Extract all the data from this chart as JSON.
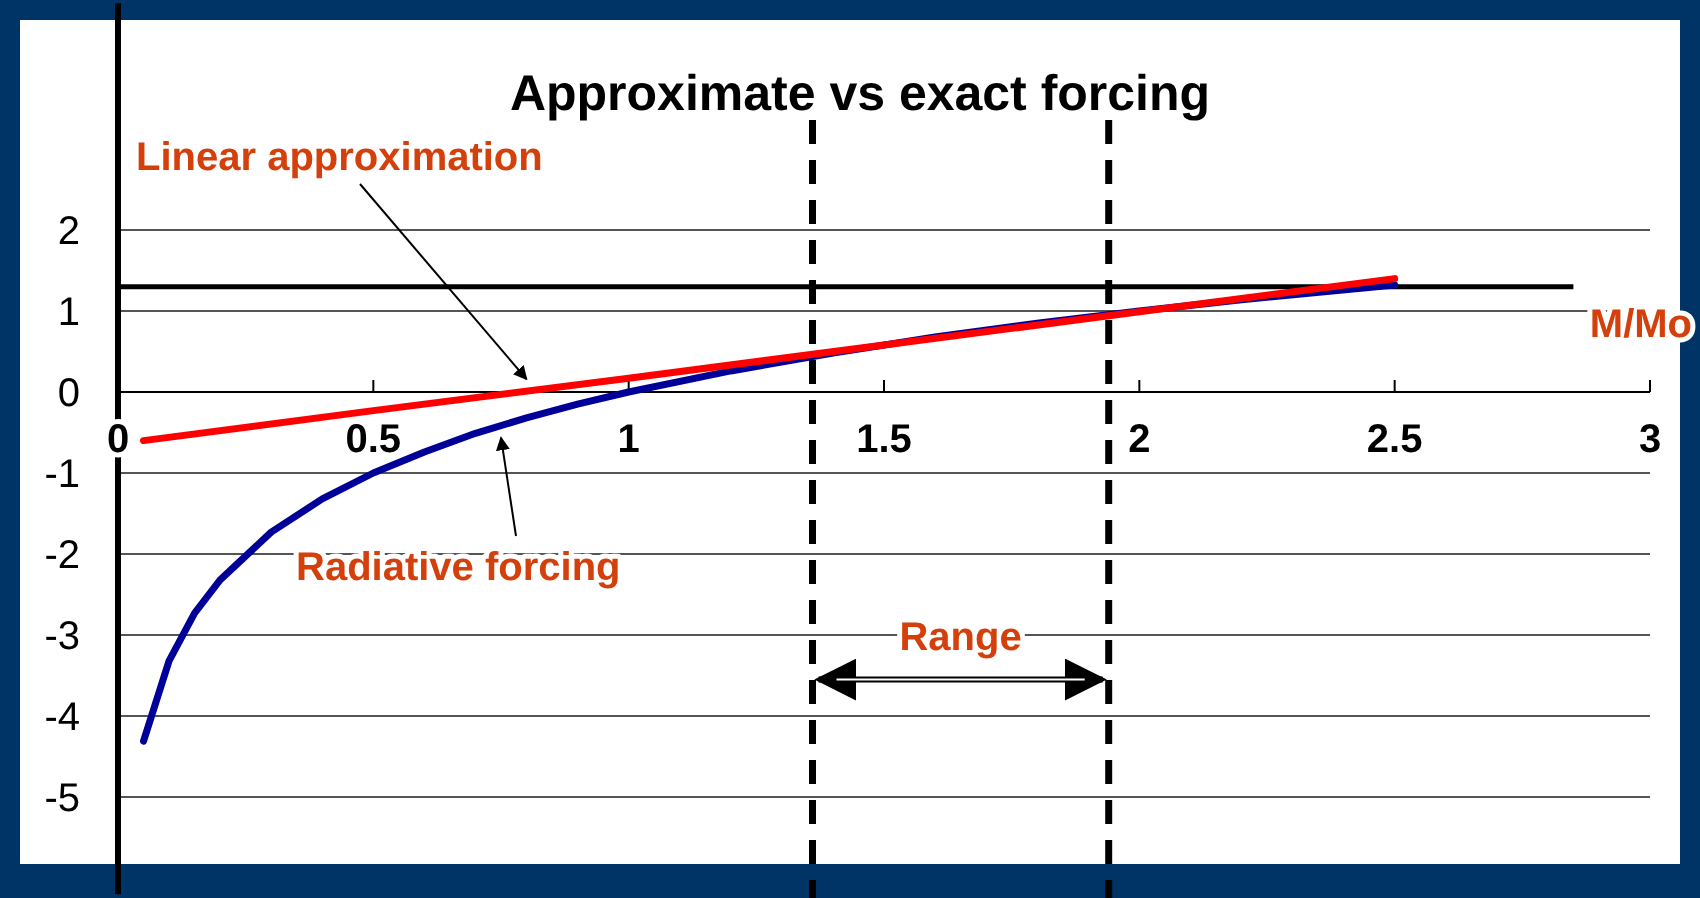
{
  "chart_data": {
    "type": "line",
    "title": "Approximate vs exact forcing",
    "xlabel": "M/Mo",
    "xlim": [
      0,
      3
    ],
    "ylim": [
      -6.2,
      4.8
    ],
    "xticks": [
      0,
      0.5,
      1,
      1.5,
      2,
      2.5,
      3
    ],
    "yticks": [
      -5,
      -4,
      -3,
      -2,
      -1,
      0,
      1,
      2
    ],
    "grid": "y",
    "marker": "none",
    "line_style": "solid",
    "series": [
      {
        "name": "Radiative forcing",
        "color": "#000099",
        "x": [
          0.05,
          0.1,
          0.15,
          0.2,
          0.3,
          0.4,
          0.5,
          0.6,
          0.7,
          0.8,
          0.9,
          1.0,
          1.2,
          1.4,
          1.6,
          1.8,
          2.0,
          2.2,
          2.5
        ],
        "values": [
          -4.31,
          -3.32,
          -2.73,
          -2.32,
          -1.73,
          -1.32,
          -1.0,
          -0.74,
          -0.51,
          -0.32,
          -0.15,
          0,
          0.26,
          0.48,
          0.68,
          0.85,
          1.0,
          1.14,
          1.32
        ]
      },
      {
        "name": "Linear approximation",
        "color": "#ff0000",
        "x": [
          0.05,
          0.5,
          1,
          1.5,
          2,
          2.5
        ],
        "values": [
          -0.6,
          -0.23,
          0.17,
          0.58,
          0.99,
          1.4
        ]
      }
    ],
    "ref_lines": [
      {
        "axis": "y",
        "value": 1.3,
        "color": "#000000",
        "line_style": "solid"
      },
      {
        "axis": "x",
        "value": 1.36,
        "color": "#000000",
        "line_style": "dashed"
      },
      {
        "axis": "x",
        "value": 1.94,
        "color": "#000000",
        "line_style": "dashed"
      }
    ],
    "annotations": [
      "Range"
    ]
  }
}
